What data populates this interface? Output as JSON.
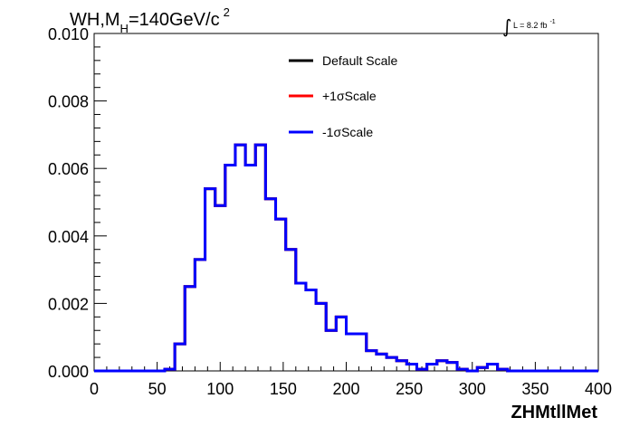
{
  "chart_data": {
    "type": "line",
    "title_parts": {
      "prefix": "WH,M",
      "subscript": "H",
      "mid": "=140GeV/c",
      "superscript": "2"
    },
    "lumi_label": {
      "prefix": "L = 8.2 fb",
      "superscript": "-1"
    },
    "xlabel": "ZHMtllMet",
    "ylabel": "",
    "xlim": [
      0,
      400
    ],
    "ylim": [
      0,
      0.01
    ],
    "x_ticks": [
      0,
      50,
      100,
      150,
      200,
      250,
      300,
      350,
      400
    ],
    "x_tick_labels": [
      "0",
      "50",
      "100",
      "150",
      "200",
      "250",
      "300",
      "350",
      "400"
    ],
    "y_ticks": [
      0,
      0.002,
      0.004,
      0.006,
      0.008,
      0.01
    ],
    "y_tick_labels": [
      "0.000",
      "0.002",
      "0.004",
      "0.006",
      "0.008",
      "0.010"
    ],
    "bin_width": 8,
    "bin_edges_start": 0,
    "grid": false,
    "legend_placement": "top-center",
    "series": [
      {
        "name": "Default Scale",
        "color": "#000000"
      },
      {
        "name": "+1σScale",
        "color": "#ff0000"
      },
      {
        "name": "-1σScale",
        "color": "#0000ff"
      }
    ],
    "values": [
      0,
      0,
      0,
      0,
      0,
      0,
      0,
      5e-05,
      0.0008,
      0.0025,
      0.0033,
      0.0054,
      0.0049,
      0.0061,
      0.0067,
      0.0061,
      0.0067,
      0.0051,
      0.0045,
      0.0036,
      0.0026,
      0.0024,
      0.002,
      0.0012,
      0.0016,
      0.0011,
      0.0011,
      0.0006,
      0.0005,
      0.0004,
      0.0003,
      0.0002,
      5e-05,
      0.0002,
      0.0003,
      0.00025,
      5e-05,
      0,
      0.0001,
      0.0002,
      5e-05,
      0,
      0,
      0,
      0,
      0,
      0,
      0,
      0,
      0
    ]
  }
}
